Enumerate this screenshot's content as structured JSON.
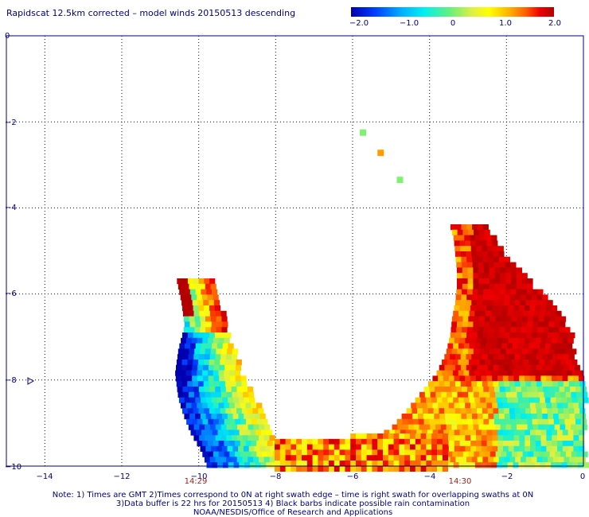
{
  "chart_data": {
    "type": "heatmap",
    "title": "Rapidscat 12.5km corrected – model winds 20150513 descending",
    "xlim": [
      -15,
      0
    ],
    "ylim": [
      -10,
      0
    ],
    "x_ticks": [
      -14,
      -12,
      -10,
      -8,
      -6,
      -4,
      -2,
      0
    ],
    "y_ticks": [
      0,
      -2,
      -4,
      -6,
      -8,
      -10
    ],
    "x_tick_labels": [
      "−14",
      "−12",
      "−10",
      "−8",
      "−6",
      "−4",
      "−2",
      "0"
    ],
    "y_tick_labels": [
      "0",
      "−2",
      "−4",
      "−6",
      "−8",
      "−10"
    ],
    "grid": true,
    "colorbar": {
      "range": [
        -2.0,
        2.0
      ],
      "tick_labels": [
        "−2.0",
        "−1.0",
        "0",
        "1.0",
        "2.0"
      ],
      "tick_values": [
        -2.0,
        -1.0,
        0.0,
        1.0,
        2.0
      ],
      "stops": [
        "#0000b0",
        "#0040ff",
        "#00b0ff",
        "#00f0f0",
        "#60f080",
        "#e0f040",
        "#ffff00",
        "#ffb000",
        "#ff6000",
        "#f00000",
        "#b00000"
      ]
    },
    "time_labels": [
      {
        "text": "14:29",
        "x": -10.1
      },
      {
        "text": "14:30",
        "x": -2.8
      }
    ],
    "scattered_cells": [
      {
        "x": -5.73,
        "y": -2.25,
        "value": -0.3
      },
      {
        "x": -5.27,
        "y": -2.72,
        "value": 0.9
      },
      {
        "x": -4.77,
        "y": -3.35,
        "value": -0.3
      }
    ]
  },
  "footer": {
    "line1": "Note: 1) Times are GMT 2)Times correspond to 0N at right swath edge – time is right swath for overlapping swaths at 0N",
    "line2": "3)Data buffer is 22 hrs for 20150513 4) Black barbs indicate possible rain contamination",
    "line3": "NOAA/NESDIS/Office of Research and Applications"
  }
}
